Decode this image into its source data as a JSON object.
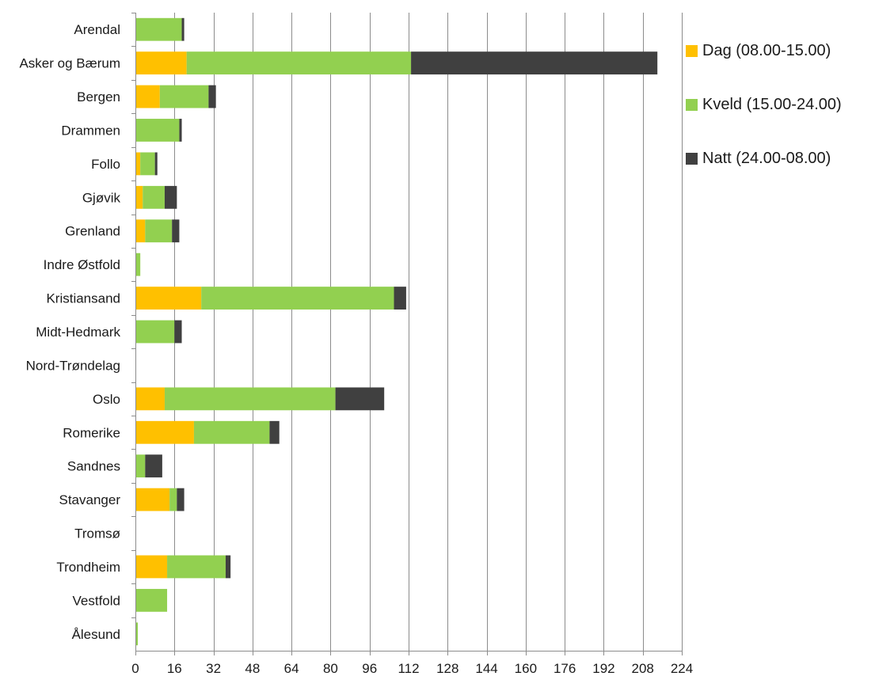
{
  "chart_data": {
    "type": "bar",
    "orientation": "horizontal",
    "stacked": true,
    "categories": [
      "Arendal",
      "Asker og Bærum",
      "Bergen",
      "Drammen",
      "Follo",
      "Gjøvik",
      "Grenland",
      "Indre Østfold",
      "Kristiansand",
      "Midt-Hedmark",
      "Nord-Trøndelag",
      "Oslo",
      "Romerike",
      "Sandnes",
      "Stavanger",
      "Tromsø",
      "Trondheim",
      "Vestfold",
      "Ålesund"
    ],
    "series": [
      {
        "name": "Dag (08.00-15.00)",
        "color": "#ffc000",
        "values": [
          0,
          21,
          10,
          0,
          2,
          3,
          4,
          0,
          27,
          0,
          0,
          12,
          24,
          0,
          14,
          0,
          13,
          0,
          0
        ]
      },
      {
        "name": "Kveld (15.00-24.00)",
        "color": "#92d050",
        "values": [
          19,
          92,
          20,
          18,
          6,
          9,
          11,
          2,
          79,
          16,
          0,
          70,
          31,
          4,
          3,
          0,
          24,
          13,
          1
        ]
      },
      {
        "name": "Natt (24.00-08.00)",
        "color": "#404040",
        "values": [
          1,
          101,
          3,
          1,
          1,
          5,
          3,
          0,
          5,
          3,
          0,
          20,
          4,
          7,
          3,
          0,
          2,
          0,
          0
        ]
      }
    ],
    "xlim": [
      0,
      224
    ],
    "xticks": [
      0,
      16,
      32,
      48,
      64,
      80,
      96,
      112,
      128,
      144,
      160,
      176,
      192,
      208,
      224
    ],
    "grid": "vertical",
    "legend_position": "right"
  }
}
